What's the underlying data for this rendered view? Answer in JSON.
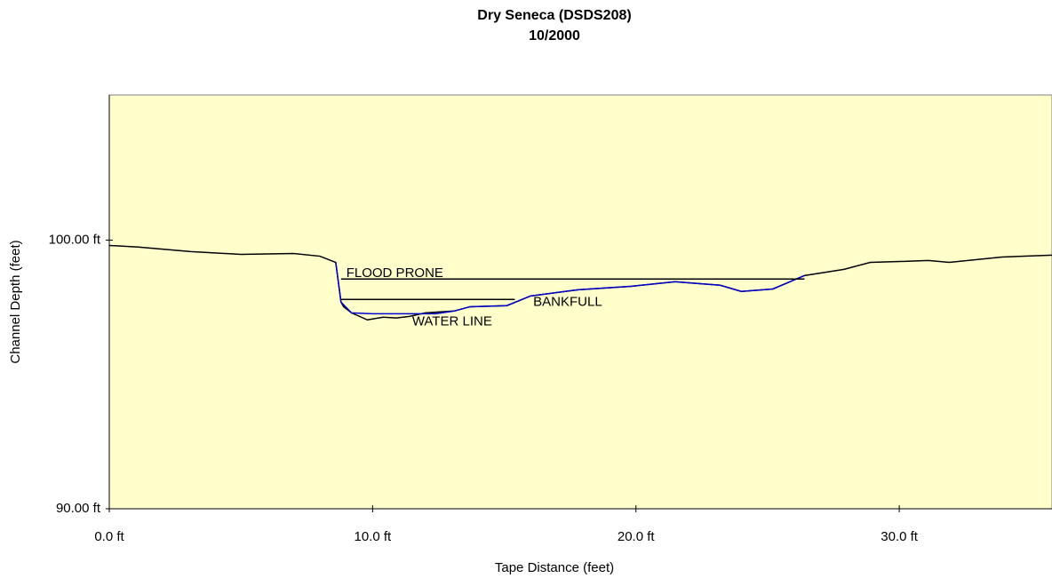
{
  "chart_data": {
    "type": "line",
    "title": "Dry Seneca (DSDS208)",
    "subtitle": "10/2000",
    "x_label": "Tape Distance (feet)",
    "y_label": "Channel Depth (feet)",
    "xlim": [
      0,
      35.8
    ],
    "ylim": [
      90,
      105.4
    ],
    "xticks": [
      {
        "value": 0,
        "label": "0.0 ft"
      },
      {
        "value": 10,
        "label": "10.0 ft"
      },
      {
        "value": 20,
        "label": "20.0 ft"
      },
      {
        "value": 30,
        "label": "30.0 ft"
      }
    ],
    "yticks": [
      {
        "value": 90,
        "label": "90.00 ft"
      },
      {
        "value": 100,
        "label": "100.00 ft"
      }
    ],
    "background": "#ffffcc",
    "series": [
      {
        "color": "#000000",
        "x": [
          0,
          1.1,
          3.1,
          5.0,
          7.0,
          8.0,
          8.6,
          8.8,
          8.9,
          9.2,
          9.8,
          10.4,
          10.9,
          11.4,
          12.0,
          13.1,
          13.7,
          15.1,
          16.0,
          17.8,
          19.8,
          21.5,
          23.2,
          24.0,
          25.2,
          26.4,
          27.9,
          28.9,
          30.3,
          31.1,
          31.9,
          33.9,
          35.8
        ],
        "values": [
          99.8,
          99.74,
          99.57,
          99.47,
          99.5,
          99.4,
          99.17,
          97.69,
          97.52,
          97.29,
          97.03,
          97.13,
          97.1,
          97.16,
          97.29,
          97.36,
          97.52,
          97.56,
          97.92,
          98.15,
          98.28,
          98.45,
          98.32,
          98.09,
          98.18,
          98.68,
          98.91,
          99.17,
          99.21,
          99.24,
          99.17,
          99.37,
          99.44
        ]
      },
      {
        "color": "#0000cc",
        "x": [
          8.6,
          8.8,
          9.2,
          10.0,
          12.4,
          13.1,
          13.7,
          15.1,
          16.0,
          17.8,
          19.8,
          21.5,
          23.2,
          24.0,
          25.2,
          26.4
        ],
        "values": [
          99.17,
          97.69,
          97.29,
          97.26,
          97.26,
          97.36,
          97.52,
          97.56,
          97.92,
          98.15,
          98.28,
          98.45,
          98.32,
          98.09,
          98.18,
          98.68
        ]
      },
      {
        "color": "#000000",
        "x": [
          8.8,
          26.4
        ],
        "values": [
          98.55,
          98.55
        ]
      },
      {
        "color": "#000000",
        "x": [
          8.8,
          15.4
        ],
        "values": [
          97.79,
          97.79
        ]
      }
    ],
    "annotations": [
      {
        "text": "FLOOD PRONE",
        "x": 9.0,
        "y": 98.75
      },
      {
        "text": "BANKFULL",
        "x": 16.1,
        "y": 97.69
      },
      {
        "text": "WATER LINE",
        "x": 11.5,
        "y": 96.96
      }
    ]
  }
}
